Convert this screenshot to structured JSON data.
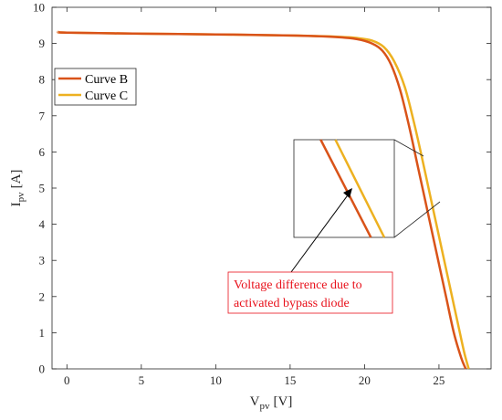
{
  "chart_data": {
    "type": "line",
    "title": "",
    "xlabel": "V",
    "xlabel_sub": "pv",
    "xlabel_unit": "[V]",
    "ylabel": "I",
    "ylabel_sub": "pv",
    "ylabel_unit": "[A]",
    "xlim": [
      -1,
      28.5
    ],
    "ylim": [
      0,
      10
    ],
    "xticks": [
      0,
      5,
      10,
      15,
      20,
      25
    ],
    "yticks": [
      0,
      1,
      2,
      3,
      4,
      5,
      6,
      7,
      8,
      9,
      10
    ],
    "grid": false,
    "legend_position": "left",
    "series": [
      {
        "name": "Curve B",
        "color": "#d95319",
        "x": [
          -0.6,
          0,
          5,
          10,
          15,
          18,
          19.5,
          20.5,
          21.2,
          21.8,
          22.4,
          23,
          23.5,
          24,
          24.5,
          25,
          25.5,
          26,
          26.5,
          26.8
        ],
        "y": [
          9.32,
          9.3,
          9.27,
          9.25,
          9.22,
          9.18,
          9.12,
          9.0,
          8.8,
          8.4,
          7.7,
          6.7,
          5.75,
          4.8,
          3.85,
          2.9,
          1.95,
          1.0,
          0.3,
          0.0
        ]
      },
      {
        "name": "Curve C",
        "color": "#edb120",
        "x": [
          -0.6,
          0,
          5,
          10,
          15,
          18,
          19.5,
          20.5,
          21.3,
          22.0,
          22.7,
          23.3,
          23.8,
          24.3,
          24.8,
          25.3,
          25.8,
          26.3,
          26.7,
          27.0
        ],
        "y": [
          9.32,
          9.3,
          9.27,
          9.25,
          9.22,
          9.19,
          9.15,
          9.08,
          8.9,
          8.5,
          7.8,
          6.85,
          5.95,
          5.0,
          4.05,
          3.1,
          2.15,
          1.2,
          0.45,
          0.0
        ]
      }
    ],
    "inset": {
      "xlim": [
        22.8,
        24.3
      ],
      "ylim": [
        4.55,
        6.3
      ],
      "series": [
        {
          "name": "Curve B",
          "x": [
            23.2,
            23.95
          ],
          "y": [
            6.3,
            4.55
          ]
        },
        {
          "name": "Curve C",
          "x": [
            23.42,
            24.15
          ],
          "y": [
            6.3,
            4.55
          ]
        }
      ]
    },
    "annotation": {
      "lines": [
        "Voltage difference due to",
        "activated bypass diode"
      ],
      "color": "#e8111b"
    }
  }
}
